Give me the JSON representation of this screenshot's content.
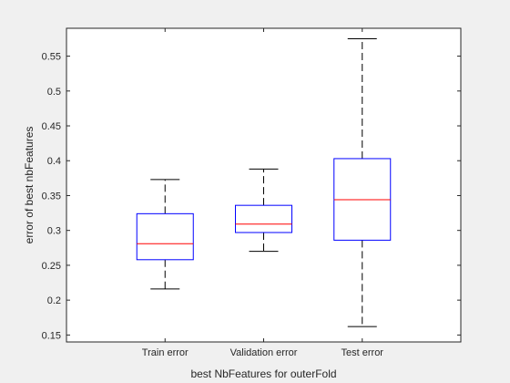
{
  "chart_data": {
    "type": "box",
    "title": "",
    "xlabel": "best NbFeatures for outerFold",
    "ylabel": "error of best nbFeatures",
    "ylim": [
      0.14,
      0.59
    ],
    "yticks": [
      0.15,
      0.2,
      0.25,
      0.3,
      0.35,
      0.4,
      0.45,
      0.5,
      0.55
    ],
    "ytick_labels": [
      "0.15",
      "0.2",
      "0.25",
      "0.3",
      "0.35",
      "0.4",
      "0.45",
      "0.5",
      "0.55"
    ],
    "categories": [
      "Train error",
      "Validation error",
      "Test error"
    ],
    "boxes": [
      {
        "category": "Train error",
        "whisker_low": 0.216,
        "q1": 0.258,
        "median": 0.281,
        "q3": 0.324,
        "whisker_high": 0.373
      },
      {
        "category": "Validation error",
        "whisker_low": 0.27,
        "q1": 0.297,
        "median": 0.309,
        "q3": 0.336,
        "whisker_high": 0.388
      },
      {
        "category": "Test error",
        "whisker_low": 0.162,
        "q1": 0.286,
        "median": 0.344,
        "q3": 0.403,
        "whisker_high": 0.575
      }
    ],
    "grid": false,
    "colors": {
      "box": "#0000ff",
      "median": "#ff0000",
      "whisker": "#000000",
      "axes_background": "#ffffff",
      "figure_background": "#f0f0f0"
    }
  }
}
